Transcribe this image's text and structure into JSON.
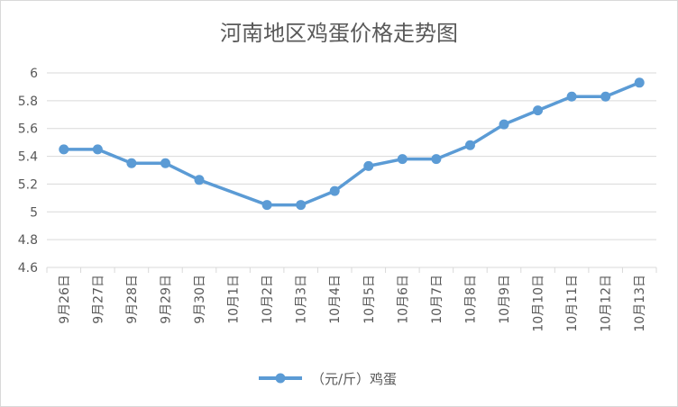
{
  "chart_data": {
    "type": "line",
    "title": "河南地区鸡蛋价格走势图",
    "categories": [
      "9月26日",
      "9月27日",
      "9月28日",
      "9月29日",
      "9月30日",
      "10月1日",
      "10月2日",
      "10月3日",
      "10月4日",
      "10月5日",
      "10月6日",
      "10月7日",
      "10月8日",
      "10月9日",
      "10月10日",
      "10月11日",
      "10月12日",
      "10月13日"
    ],
    "series": [
      {
        "name": "（元/斤）鸡蛋",
        "color": "#5b9bd5",
        "values": [
          5.45,
          5.45,
          5.35,
          5.35,
          5.23,
          null,
          5.05,
          5.05,
          5.15,
          5.33,
          5.38,
          5.38,
          5.48,
          5.63,
          5.73,
          5.83,
          5.83,
          5.93
        ]
      }
    ],
    "ylim": [
      4.6,
      6
    ],
    "ystep": 0.2,
    "yticks": [
      "4.6",
      "4.8",
      "5",
      "5.2",
      "5.4",
      "5.6",
      "5.8",
      "6"
    ],
    "grid": "horizontal",
    "legend_position": "bottom"
  }
}
